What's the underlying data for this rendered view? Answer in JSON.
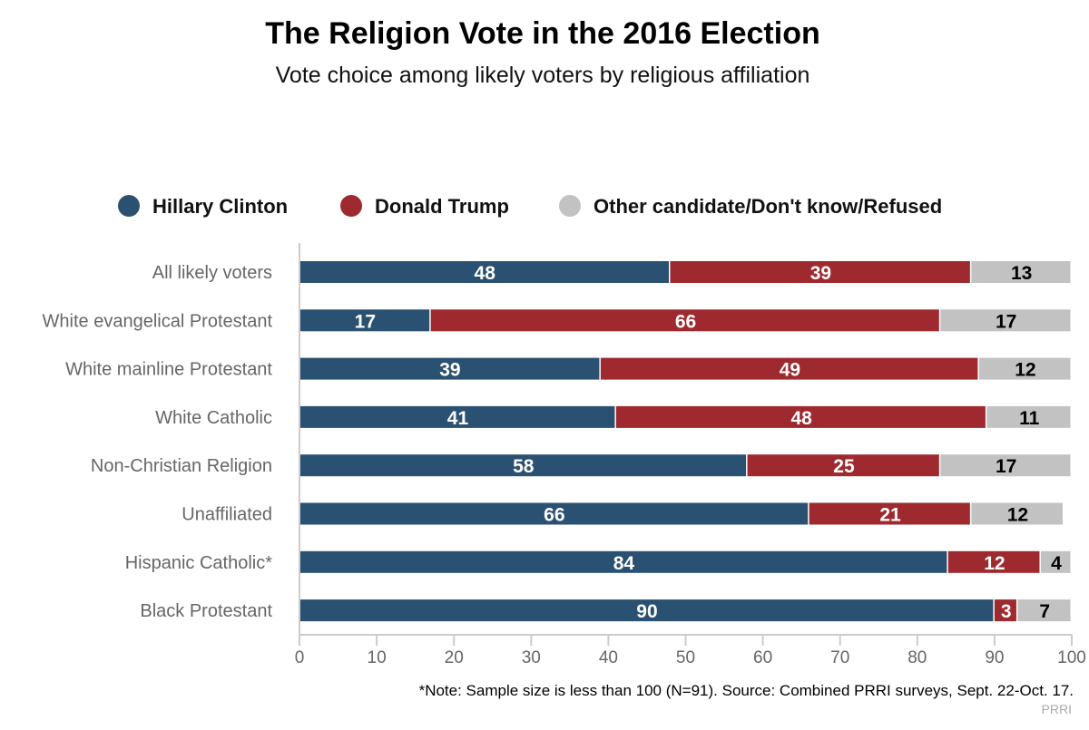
{
  "chart_data": {
    "type": "bar",
    "orientation": "horizontal",
    "stacked": true,
    "title": "The Religion Vote in the 2016 Election",
    "subtitle": "Vote choice among likely voters by religious affiliation",
    "categories": [
      "All likely voters",
      "White evangelical Protestant",
      "White mainline Protestant",
      "White Catholic",
      "Non-Christian Religion",
      "Unaffiliated",
      "Hispanic Catholic*",
      "Black Protestant"
    ],
    "series": [
      {
        "name": "Hillary Clinton",
        "color": "#2b5172",
        "label_color": "#ffffff",
        "values": [
          48,
          17,
          39,
          41,
          58,
          66,
          84,
          90
        ]
      },
      {
        "name": "Donald Trump",
        "color": "#9e2a2f",
        "label_color": "#ffffff",
        "values": [
          39,
          66,
          49,
          48,
          25,
          21,
          12,
          3
        ]
      },
      {
        "name": "Other candidate/Don't know/Refused",
        "color": "#c2c2c2",
        "label_color": "#000000",
        "values": [
          13,
          17,
          12,
          11,
          17,
          12,
          4,
          7
        ]
      }
    ],
    "xlim": [
      0,
      100
    ],
    "xticks": [
      "0",
      "10",
      "20",
      "30",
      "40",
      "50",
      "60",
      "70",
      "80",
      "90",
      "100"
    ],
    "grid": false,
    "legend_position": "top",
    "note": "*Note: Sample size is less than 100 (N=91). Source: Combined PRRI surveys, Sept. 22-Oct. 17.",
    "credit": "PRRI"
  }
}
